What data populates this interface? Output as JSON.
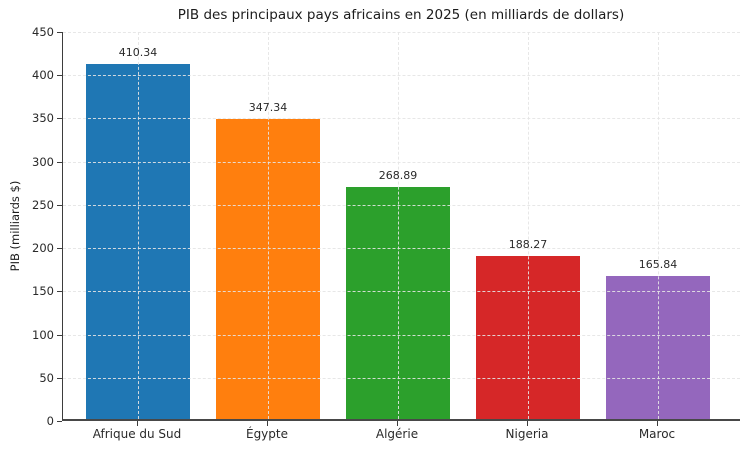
{
  "chart_data": {
    "type": "bar",
    "title": "PIB des principaux pays africains en 2025 (en milliards de dollars)",
    "ylabel": "PIB (milliards $)",
    "xlabel": "",
    "categories": [
      "Afrique du Sud",
      "Égypte",
      "Algérie",
      "Nigeria",
      "Maroc"
    ],
    "values": [
      410.34,
      347.34,
      268.89,
      188.27,
      165.84
    ],
    "value_labels": [
      "410.34",
      "347.34",
      "268.89",
      "188.27",
      "165.84"
    ],
    "bar_colors": [
      "#1f77b4",
      "#ff7f0e",
      "#2ca02c",
      "#d62728",
      "#9467bd"
    ],
    "ylim": [
      0,
      450
    ],
    "yticks": [
      0,
      50,
      100,
      150,
      200,
      250,
      300,
      350,
      400,
      450
    ],
    "grid": "horizontal and vertical, light gray dashed",
    "legend": "none"
  }
}
